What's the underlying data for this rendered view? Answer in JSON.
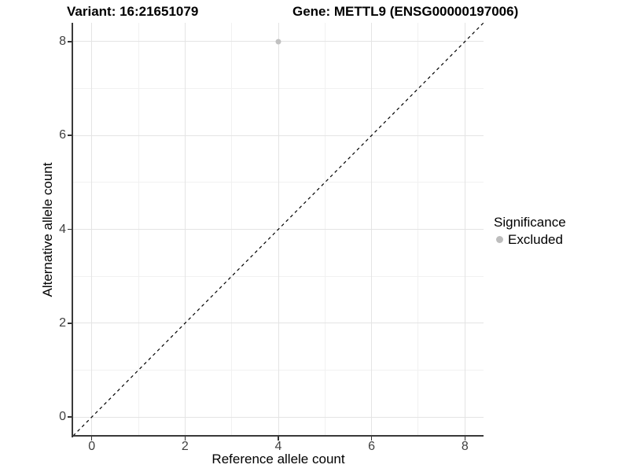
{
  "chart_data": {
    "type": "scatter",
    "title_left": "Variant: 16:21651079",
    "title_right": "Gene: METTL9 (ENSG00000197006)",
    "xlabel": "Reference allele count",
    "ylabel": "Alternative allele count",
    "xlim": [
      -0.4,
      8.4
    ],
    "ylim": [
      -0.4,
      8.4
    ],
    "x_major_ticks": [
      0,
      2,
      4,
      6,
      8
    ],
    "x_minor_ticks": [
      1,
      3,
      5,
      7
    ],
    "y_major_ticks": [
      0,
      2,
      4,
      6,
      8
    ],
    "y_minor_ticks": [
      1,
      3,
      5,
      7
    ],
    "grid": true,
    "series": [
      {
        "name": "Excluded",
        "marker": "circle",
        "color": "#c1c1c1",
        "points": [
          {
            "x": 4,
            "y": 8
          }
        ]
      }
    ],
    "reference_line": {
      "kind": "identity",
      "style": "dashed",
      "color": "#000000",
      "from": [
        -0.4,
        -0.4
      ],
      "to": [
        8.4,
        8.4
      ]
    },
    "legend": {
      "title": "Significance",
      "position": "right",
      "entries": [
        {
          "label": "Excluded",
          "marker": "circle",
          "color": "#bdbdbd"
        }
      ]
    },
    "colors": {
      "background": "#ffffff",
      "grid_major": "#e4e4e4",
      "grid_minor": "#f1f1f1",
      "axis_line": "#3a3a3a",
      "tick_label": "#404040",
      "point": "#c1c1c1"
    }
  }
}
